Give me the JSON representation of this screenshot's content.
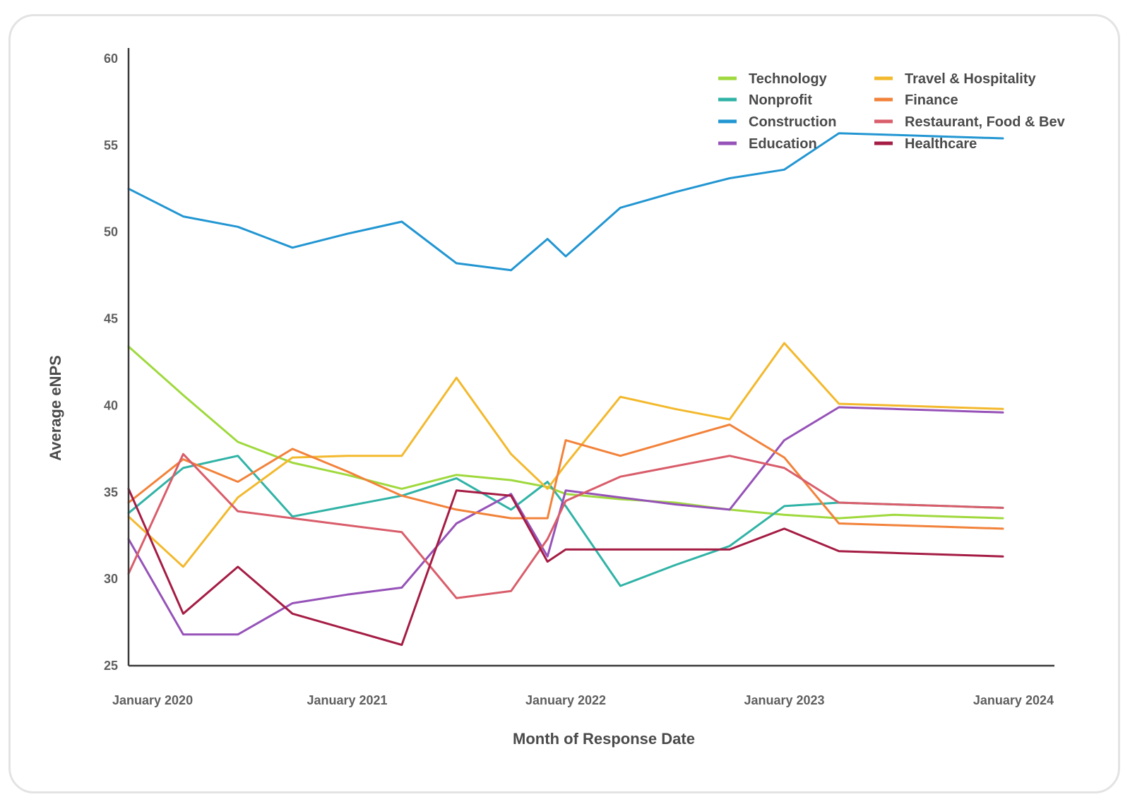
{
  "chart_data": {
    "type": "line",
    "title": "",
    "xlabel": "Month of Response Date",
    "ylabel": "Average eNPS",
    "ylim": [
      25,
      60
    ],
    "yticks": [
      25,
      30,
      35,
      40,
      45,
      50,
      55,
      60
    ],
    "x": [
      "2020-01",
      "2020-04",
      "2020-07",
      "2020-10",
      "2021-01",
      "2021-04",
      "2021-07",
      "2021-10",
      "2021-12",
      "2022-01",
      "2022-04",
      "2022-07",
      "2022-10",
      "2023-01",
      "2023-04",
      "2023-07",
      "2023-10",
      "2024-01"
    ],
    "xticks": [
      {
        "x": "2020-01",
        "label": "January 2020"
      },
      {
        "x": "2021-01",
        "label": "January 2021"
      },
      {
        "x": "2022-01",
        "label": "January 2022"
      },
      {
        "x": "2023-01",
        "label": "January 2023"
      },
      {
        "x": "2024-01",
        "label": "January 2024"
      }
    ],
    "grid": false,
    "legend_position": "top-right",
    "series": [
      {
        "name": "Technology",
        "color": "#9fd93d",
        "values": [
          43.4,
          40.6,
          37.9,
          36.7,
          36.0,
          35.2,
          36.0,
          35.7,
          35.3,
          34.9,
          34.6,
          34.4,
          34.0,
          33.7,
          33.5,
          33.7,
          33.6,
          33.5
        ]
      },
      {
        "name": "Nonprofit",
        "color": "#30b3a6",
        "values": [
          33.8,
          36.4,
          37.1,
          33.6,
          34.2,
          34.8,
          35.8,
          34.0,
          35.6,
          34.2,
          29.6,
          30.8,
          31.9,
          34.2,
          34.4,
          34.3,
          34.2,
          34.1
        ]
      },
      {
        "name": "Construction",
        "color": "#2296d2",
        "values": [
          52.5,
          50.9,
          50.3,
          49.1,
          49.9,
          50.6,
          48.2,
          47.8,
          49.6,
          48.6,
          51.4,
          52.3,
          53.1,
          53.6,
          55.7,
          55.6,
          55.5,
          55.4
        ]
      },
      {
        "name": "Education",
        "color": "#9652b8",
        "values": [
          32.3,
          26.8,
          26.8,
          28.6,
          29.1,
          29.5,
          33.2,
          34.9,
          31.3,
          35.1,
          34.7,
          34.3,
          34.0,
          38.0,
          39.9,
          39.8,
          39.7,
          39.6
        ]
      },
      {
        "name": "Travel & Hospitality",
        "color": "#f3b92d",
        "values": [
          33.6,
          30.7,
          34.7,
          37.0,
          37.1,
          37.1,
          41.6,
          37.2,
          35.2,
          36.6,
          40.5,
          39.8,
          39.2,
          43.6,
          40.1,
          40.0,
          39.9,
          39.8
        ]
      },
      {
        "name": "Finance",
        "color": "#f2823a",
        "values": [
          34.4,
          36.9,
          35.6,
          37.5,
          36.2,
          34.8,
          34.0,
          33.5,
          33.5,
          38.0,
          37.1,
          38.0,
          38.9,
          37.0,
          33.2,
          33.1,
          33.0,
          32.9
        ]
      },
      {
        "name": "Restaurant, Food & Bev",
        "color": "#d95d6a",
        "values": [
          30.3,
          37.2,
          33.9,
          33.5,
          33.1,
          32.7,
          28.9,
          29.3,
          32.3,
          34.5,
          35.9,
          36.5,
          37.1,
          36.4,
          34.4,
          34.3,
          34.2,
          34.1
        ]
      },
      {
        "name": "Healthcare",
        "color": "#a51c44",
        "values": [
          35.2,
          28.0,
          30.7,
          28.0,
          27.1,
          26.2,
          35.1,
          34.8,
          31.0,
          31.7,
          31.7,
          31.7,
          31.7,
          32.9,
          31.6,
          31.5,
          31.4,
          31.3
        ]
      }
    ]
  }
}
